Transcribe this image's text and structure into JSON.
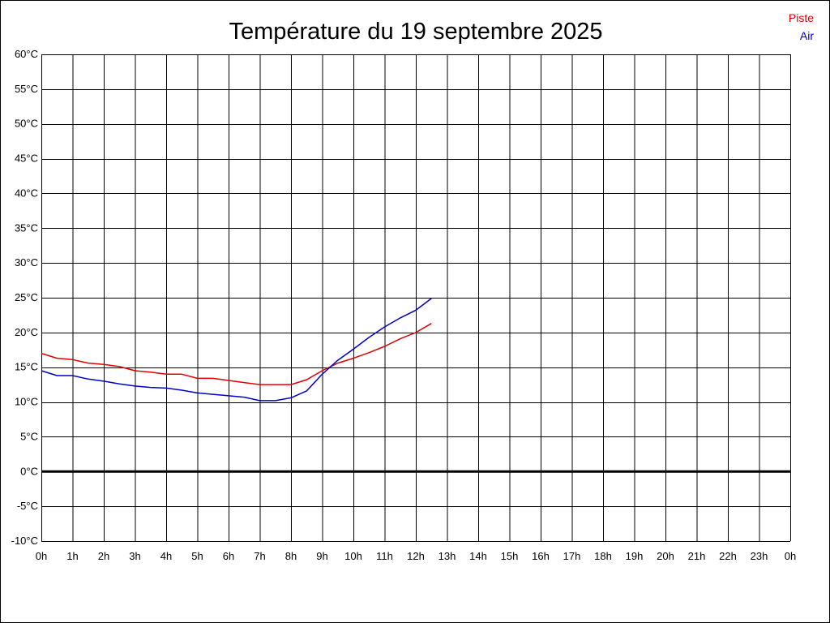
{
  "chart_data": {
    "type": "line",
    "title": "Température du 19 septembre 2025",
    "xlabel": "",
    "ylabel": "",
    "x_tick_labels": [
      "0h",
      "1h",
      "2h",
      "3h",
      "4h",
      "5h",
      "6h",
      "7h",
      "8h",
      "9h",
      "10h",
      "11h",
      "12h",
      "13h",
      "14h",
      "15h",
      "16h",
      "17h",
      "18h",
      "19h",
      "20h",
      "21h",
      "22h",
      "23h",
      "0h"
    ],
    "y_tick_labels": [
      "60°C",
      "55°C",
      "50°C",
      "45°C",
      "40°C",
      "35°C",
      "30°C",
      "25°C",
      "20°C",
      "15°C",
      "10°C",
      "5°C",
      "0°C",
      "-5°C",
      "-10°C"
    ],
    "xlim": [
      0,
      24
    ],
    "ylim": [
      -10,
      60
    ],
    "grid": true,
    "legend_position": "top-right",
    "zero_line": 0,
    "series": [
      {
        "name": "Piste",
        "color": "#e00000",
        "x": [
          0,
          0.5,
          1,
          1.5,
          2,
          2.5,
          3,
          3.5,
          4,
          4.5,
          5,
          5.5,
          6,
          6.5,
          7,
          7.5,
          8,
          8.5,
          9,
          9.5,
          10,
          10.5,
          11,
          11.5,
          12,
          12.5
        ],
        "y": [
          17.0,
          16.3,
          16.1,
          15.6,
          15.4,
          15.1,
          14.5,
          14.3,
          14.0,
          14.0,
          13.4,
          13.4,
          13.1,
          12.8,
          12.5,
          12.5,
          12.5,
          13.2,
          14.5,
          15.6,
          16.3,
          17.1,
          18.0,
          19.1,
          20.0,
          21.3
        ]
      },
      {
        "name": "Air",
        "color": "#0000c8",
        "x": [
          0,
          0.5,
          1,
          1.5,
          2,
          2.5,
          3,
          3.5,
          4,
          4.5,
          5,
          5.5,
          6,
          6.5,
          7,
          7.5,
          8,
          8.5,
          9,
          9.5,
          10,
          10.5,
          11,
          11.5,
          12,
          12.5
        ],
        "y": [
          14.5,
          13.8,
          13.8,
          13.3,
          13.0,
          12.6,
          12.3,
          12.1,
          12.0,
          11.7,
          11.3,
          11.1,
          10.9,
          10.7,
          10.2,
          10.2,
          10.6,
          11.6,
          14.0,
          16.0,
          17.6,
          19.3,
          20.8,
          22.1,
          23.2,
          24.9
        ]
      }
    ]
  }
}
